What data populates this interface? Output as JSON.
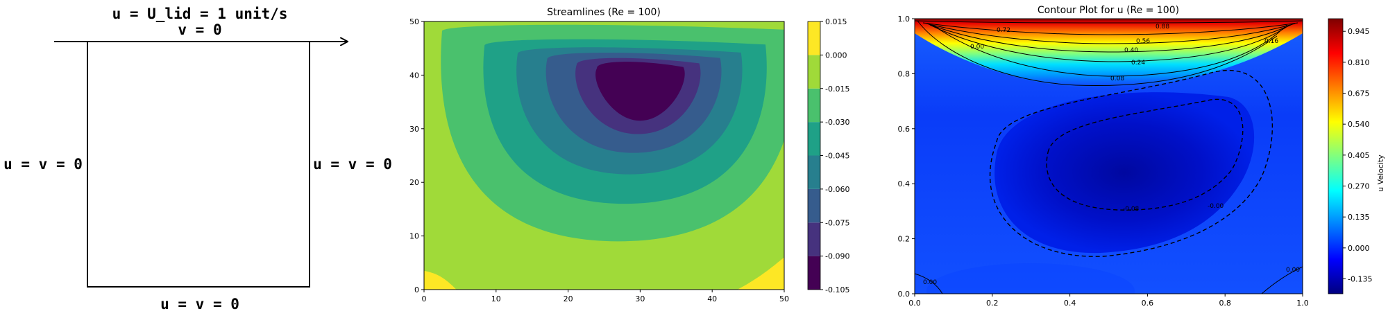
{
  "diagram": {
    "lid_label": "u = U_lid = 1 unit/s",
    "lid_v_label": "v = 0",
    "left_label": "u = v = 0",
    "right_label": "u = v = 0",
    "bottom_label": "u = v = 0"
  },
  "chart_data": [
    {
      "type": "heatmap",
      "title": "Streamlines (Re = 100)",
      "xlabel": "",
      "ylabel": "",
      "xlim": [
        0,
        50
      ],
      "ylim": [
        0,
        50
      ],
      "xticks": [
        "0",
        "10",
        "20",
        "30",
        "40",
        "50"
      ],
      "yticks": [
        "0",
        "10",
        "20",
        "30",
        "40",
        "50"
      ],
      "colorbar": {
        "label": "",
        "levels": [
          -0.105,
          -0.09,
          -0.075,
          -0.06,
          -0.045,
          -0.03,
          -0.015,
          0.0,
          0.015
        ],
        "ticks": [
          "-0.105",
          "-0.090",
          "-0.075",
          "-0.060",
          "-0.045",
          "-0.030",
          "-0.015",
          "0.000",
          "0.015"
        ],
        "colors": [
          "#440154",
          "#46327e",
          "#365c8d",
          "#277f8e",
          "#1fa187",
          "#4ac16d",
          "#a0da39",
          "#fde725"
        ]
      },
      "vortex_center": [
        30,
        37
      ],
      "min_value": -0.103
    },
    {
      "type": "heatmap",
      "title": "Contour Plot for u (Re = 100)",
      "xlabel": "",
      "ylabel": "",
      "xlim": [
        0,
        1
      ],
      "ylim": [
        0,
        1
      ],
      "xticks": [
        "0.0",
        "0.2",
        "0.4",
        "0.6",
        "0.8",
        "1.0"
      ],
      "yticks": [
        "0.0",
        "0.2",
        "0.4",
        "0.6",
        "0.8",
        "1.0"
      ],
      "colorbar": {
        "label": "u Velocity",
        "ticks": [
          "-0.135",
          "0.000",
          "0.135",
          "0.270",
          "0.405",
          "0.540",
          "0.675",
          "0.810",
          "0.945"
        ],
        "range": [
          -0.2,
          1.0
        ]
      },
      "contour_labels": [
        "0.88",
        "0.72",
        "0.56",
        "0.40",
        "0.24",
        "0.08",
        "0.00",
        "-0.08",
        "-0.00",
        "0.16",
        "0.00",
        "0.00"
      ],
      "contour_levels": [
        0.88,
        0.72,
        0.56,
        0.4,
        0.24,
        0.16,
        0.08,
        0.0,
        -0.08
      ]
    }
  ]
}
